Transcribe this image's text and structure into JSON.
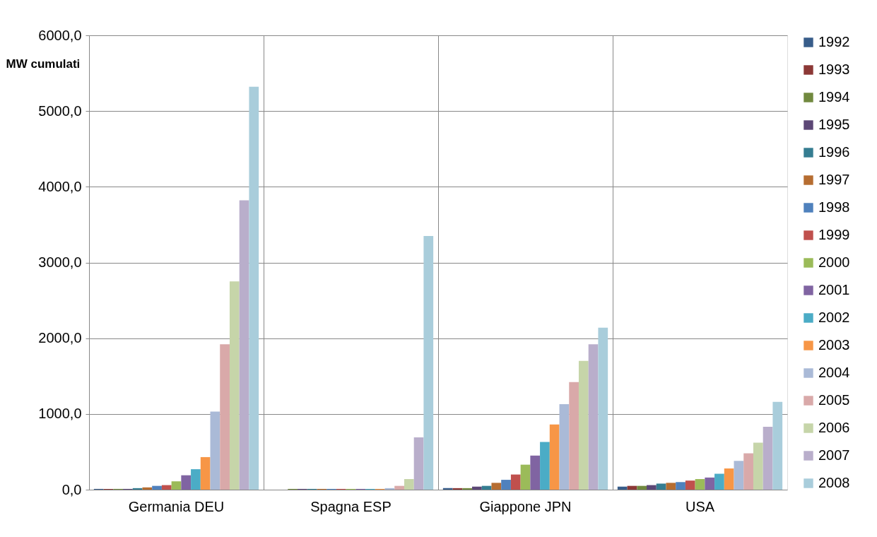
{
  "chart_data": {
    "type": "bar",
    "ylabel": "MW cumulati",
    "categories": [
      "Germania DEU",
      "Spagna ESP",
      "Giappone JPN",
      "USA"
    ],
    "ylim": [
      0,
      6000
    ],
    "yticks": [
      {
        "value": 0,
        "label": "0,0"
      },
      {
        "value": 1000,
        "label": "1000,0"
      },
      {
        "value": 2000,
        "label": "2000,0"
      },
      {
        "value": 3000,
        "label": "3000,0"
      },
      {
        "value": 4000,
        "label": "4000,0"
      },
      {
        "value": 5000,
        "label": "5000,0"
      },
      {
        "value": 6000,
        "label": "6000,0"
      }
    ],
    "grid": true,
    "legend": "right",
    "series": [
      {
        "name": "1992",
        "color": "#385d8a",
        "values": [
          10,
          0,
          20,
          40
        ]
      },
      {
        "name": "1993",
        "color": "#8c3836",
        "values": [
          10,
          0,
          20,
          50
        ]
      },
      {
        "name": "1994",
        "color": "#71893f",
        "values": [
          10,
          10,
          20,
          50
        ]
      },
      {
        "name": "1995",
        "color": "#5c4776",
        "values": [
          10,
          10,
          40,
          60
        ]
      },
      {
        "name": "1996",
        "color": "#357d91",
        "values": [
          20,
          10,
          50,
          80
        ]
      },
      {
        "name": "1997",
        "color": "#b66d31",
        "values": [
          30,
          10,
          90,
          90
        ]
      },
      {
        "name": "1998",
        "color": "#4f81bd",
        "values": [
          50,
          10,
          130,
          100
        ]
      },
      {
        "name": "1999",
        "color": "#c0504d",
        "values": [
          60,
          10,
          200,
          120
        ]
      },
      {
        "name": "2000",
        "color": "#9bbb59",
        "values": [
          110,
          10,
          330,
          140
        ]
      },
      {
        "name": "2001",
        "color": "#8064a2",
        "values": [
          190,
          10,
          450,
          160
        ]
      },
      {
        "name": "2002",
        "color": "#4bacc6",
        "values": [
          270,
          10,
          630,
          210
        ]
      },
      {
        "name": "2003",
        "color": "#f79646",
        "values": [
          430,
          10,
          860,
          280
        ]
      },
      {
        "name": "2004",
        "color": "#aabad7",
        "values": [
          1030,
          20,
          1130,
          380
        ]
      },
      {
        "name": "2005",
        "color": "#d9a9a9",
        "values": [
          1920,
          50,
          1420,
          480
        ]
      },
      {
        "name": "2006",
        "color": "#c6d5a9",
        "values": [
          2750,
          140,
          1700,
          620
        ]
      },
      {
        "name": "2007",
        "color": "#b9aecb",
        "values": [
          3820,
          690,
          1920,
          830
        ]
      },
      {
        "name": "2008",
        "color": "#a9cddb",
        "values": [
          5320,
          3350,
          2140,
          1160
        ]
      }
    ]
  }
}
